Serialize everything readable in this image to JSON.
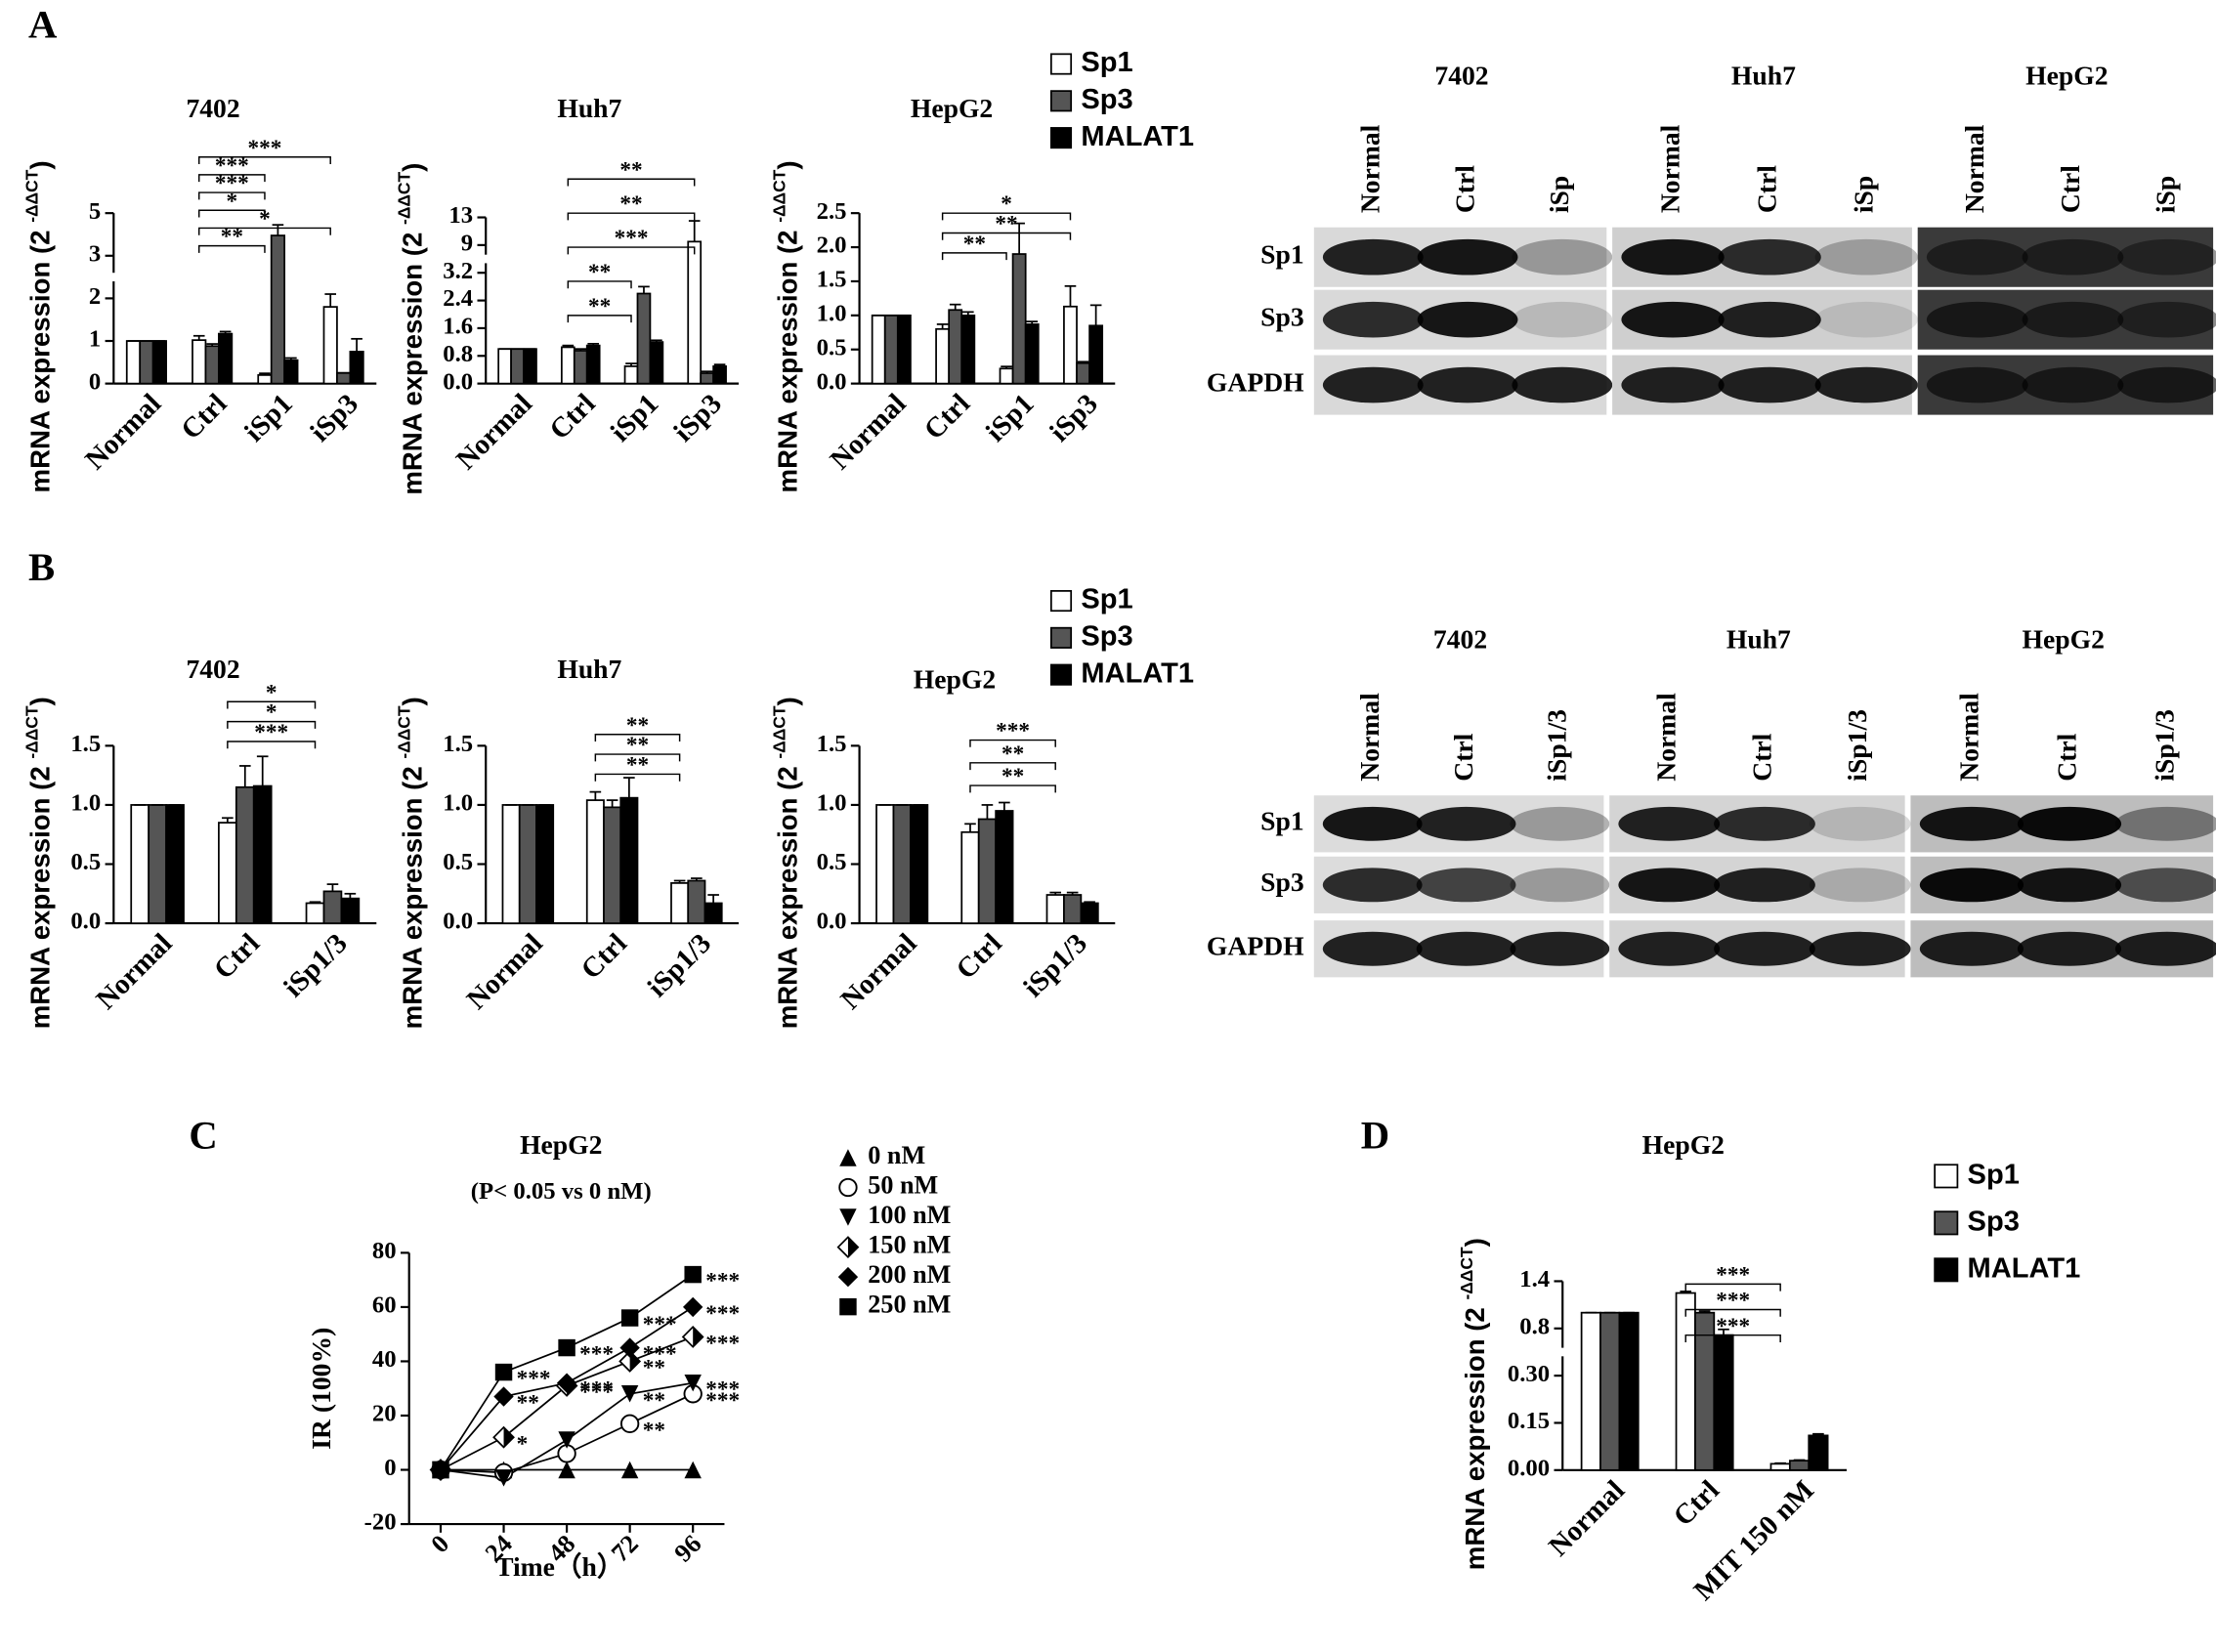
{
  "panel_labels": [
    "A",
    "B",
    "C",
    "D"
  ],
  "blots": [
    {
      "row_labels": [
        "Sp1",
        "Sp3",
        "GAPDH"
      ],
      "panels": [
        {
          "title": "7402",
          "lanes": [
            "Normal",
            "Ctrl",
            "iSp"
          ]
        },
        {
          "title": "Huh7",
          "lanes": [
            "Normal",
            "Ctrl",
            "iSp"
          ]
        },
        {
          "title": "HepG2",
          "lanes": [
            "Normal",
            "Ctrl",
            "iSp"
          ]
        }
      ]
    },
    {
      "row_labels": [
        "Sp1",
        "Sp3",
        "GAPDH"
      ],
      "panels": [
        {
          "title": "7402",
          "lanes": [
            "Normal",
            "Ctrl",
            "iSp1/3"
          ]
        },
        {
          "title": "Huh7",
          "lanes": [
            "Normal",
            "Ctrl",
            "iSp1/3"
          ]
        },
        {
          "title": "HepG2",
          "lanes": [
            "Normal",
            "Ctrl",
            "iSp1/3"
          ]
        }
      ]
    }
  ],
  "chart_data": [
    {
      "type": "bar",
      "title": "7402",
      "ylabel": [
        "mRNA expression (2 ",
        "-ΔΔCT",
        ")"
      ],
      "categories": [
        "Normal",
        "Ctrl",
        "iSp1",
        "iSp3"
      ],
      "series": [
        {
          "color": "#ffffff",
          "values": [
            1,
            1.02,
            0.2,
            1.8
          ],
          "errors": [
            0,
            0.1,
            0.04,
            0.3
          ]
        },
        {
          "color": "#555555",
          "values": [
            1,
            0.88,
            3.95,
            0.25
          ],
          "errors": [
            0,
            0.05,
            0.5,
            0
          ]
        },
        {
          "color": "#000000",
          "values": [
            1,
            1.17,
            0.55,
            0.75
          ],
          "errors": [
            0,
            0.05,
            0.05,
            0.3
          ]
        }
      ],
      "ylim": [
        0,
        5
      ],
      "yticks": [
        0,
        1,
        2,
        3,
        5
      ],
      "axis_break": true,
      "annotations": [
        {
          "text": "**",
          "from": "Ctrl",
          "to": "iSp1"
        },
        {
          "text": "*",
          "from": "Ctrl",
          "to": "iSp3"
        },
        {
          "text": "*",
          "from": "Ctrl",
          "to": "iSp1"
        },
        {
          "text": "***",
          "from": "Ctrl",
          "to": "iSp1"
        },
        {
          "text": "***",
          "from": "Ctrl",
          "to": "iSp1"
        },
        {
          "text": "***",
          "from": "Ctrl",
          "to": "iSp3"
        }
      ]
    },
    {
      "type": "bar",
      "title": "Huh7",
      "ylabel": [
        "mRNA expression (2 ",
        "-ΔΔCT",
        ")"
      ],
      "categories": [
        "Normal",
        "Ctrl",
        "iSp1",
        "iSp3"
      ],
      "series": [
        {
          "color": "#ffffff",
          "values": [
            1,
            1.05,
            0.5,
            9.5
          ],
          "errors": [
            0,
            0.05,
            0.08,
            3
          ]
        },
        {
          "color": "#555555",
          "values": [
            1,
            0.95,
            2.6,
            0.3
          ],
          "errors": [
            0,
            0.05,
            0.2,
            0.05
          ]
        },
        {
          "color": "#000000",
          "values": [
            1,
            1.1,
            1.2,
            0.5
          ],
          "errors": [
            0,
            0.05,
            0.05,
            0.05
          ]
        }
      ],
      "ylim": [
        0,
        13
      ],
      "yticks": [
        {
          "value": 0,
          "label": "0.0"
        },
        0.8,
        1.6,
        2.4,
        3.2,
        9,
        13
      ],
      "axis_break": true,
      "annotations": [
        {
          "text": "**",
          "from": "Ctrl",
          "to": "iSp1"
        },
        {
          "text": "**",
          "from": "Ctrl",
          "to": "iSp1"
        },
        {
          "text": "***",
          "from": "Ctrl",
          "to": "iSp3"
        },
        {
          "text": "**",
          "from": "Ctrl",
          "to": "iSp3"
        },
        {
          "text": "**",
          "from": "Ctrl",
          "to": "iSp3"
        }
      ]
    },
    {
      "type": "bar",
      "title": "HepG2",
      "ylabel": [
        "mRNA expression (2 ",
        "-ΔΔCT",
        ")"
      ],
      "categories": [
        "Normal",
        "Ctrl",
        "iSp1",
        "iSp3"
      ],
      "series": [
        {
          "name": "Sp1",
          "color": "#ffffff",
          "values": [
            1,
            0.8,
            0.22,
            1.13
          ],
          "errors": [
            0,
            0.07,
            0.03,
            0.3
          ]
        },
        {
          "name": "Sp3",
          "color": "#555555",
          "values": [
            1,
            1.08,
            1.9,
            0.3
          ],
          "errors": [
            0,
            0.08,
            0.45,
            0.02
          ]
        },
        {
          "name": "MALAT1",
          "color": "#000000",
          "values": [
            1,
            1.0,
            0.87,
            0.85
          ],
          "errors": [
            0,
            0.05,
            0.04,
            0.3
          ]
        }
      ],
      "ylim": [
        0,
        2.5
      ],
      "yticks": [
        {
          "value": 0,
          "label": "0.0"
        },
        0.5,
        {
          "value": 1,
          "label": "1.0"
        },
        1.5,
        {
          "value": 2,
          "label": "2.0"
        },
        2.5
      ],
      "legend": "right",
      "annotations": [
        {
          "text": "**",
          "from": "Ctrl",
          "to": "iSp1"
        },
        {
          "text": "**",
          "from": "Ctrl",
          "to": "iSp3"
        },
        {
          "text": "*",
          "from": "Ctrl",
          "to": "iSp3"
        }
      ]
    },
    {
      "type": "bar",
      "title": "7402",
      "ylabel": [
        "mRNA expression (2 ",
        "-ΔΔCT",
        ")"
      ],
      "categories": [
        "Normal",
        "Ctrl",
        "iSp1/3"
      ],
      "series": [
        {
          "color": "#ffffff",
          "values": [
            1,
            0.85,
            0.17
          ],
          "errors": [
            0,
            0.04,
            0.01
          ]
        },
        {
          "color": "#555555",
          "values": [
            1,
            1.15,
            0.27
          ],
          "errors": [
            0,
            0.18,
            0.06
          ]
        },
        {
          "color": "#000000",
          "values": [
            1,
            1.16,
            0.21
          ],
          "errors": [
            0,
            0.25,
            0.04
          ]
        }
      ],
      "ylim": [
        0,
        1.5
      ],
      "yticks": [
        {
          "value": 0,
          "label": "0.0"
        },
        0.5,
        {
          "value": 1,
          "label": "1.0"
        },
        1.5
      ],
      "annotations": [
        {
          "text": "***",
          "from": "Ctrl",
          "to": "iSp1/3"
        },
        {
          "text": "*",
          "from": "Ctrl",
          "to": "iSp1/3"
        },
        {
          "text": "*",
          "from": "Ctrl",
          "to": "iSp1/3"
        }
      ]
    },
    {
      "type": "bar",
      "title": "Huh7",
      "ylabel": [
        "mRNA expression (2 ",
        "-ΔΔCT",
        ")"
      ],
      "categories": [
        "Normal",
        "Ctrl",
        "iSp1/3"
      ],
      "series": [
        {
          "color": "#ffffff",
          "values": [
            1,
            1.04,
            0.34
          ],
          "errors": [
            0,
            0.07,
            0.02
          ]
        },
        {
          "color": "#555555",
          "values": [
            1,
            0.98,
            0.36
          ],
          "errors": [
            0,
            0.06,
            0.02
          ]
        },
        {
          "color": "#000000",
          "values": [
            1,
            1.06,
            0.17
          ],
          "errors": [
            0,
            0.17,
            0.07
          ]
        }
      ],
      "ylim": [
        0,
        1.5
      ],
      "yticks": [
        {
          "value": 0,
          "label": "0.0"
        },
        0.5,
        {
          "value": 1,
          "label": "1.0"
        },
        1.5
      ],
      "annotations": [
        {
          "text": "**",
          "from": "Ctrl",
          "to": "iSp1/3"
        },
        {
          "text": "**",
          "from": "Ctrl",
          "to": "iSp1/3"
        },
        {
          "text": "**",
          "from": "Ctrl",
          "to": "iSp1/3"
        }
      ]
    },
    {
      "type": "bar",
      "title": "HepG2",
      "ylabel": [
        "mRNA expression (2 ",
        "-ΔΔCT",
        ")"
      ],
      "categories": [
        "Normal",
        "Ctrl",
        "iSp1/3"
      ],
      "series": [
        {
          "name": "Sp1",
          "color": "#ffffff",
          "values": [
            1,
            0.77,
            0.24
          ],
          "errors": [
            0,
            0.07,
            0.02
          ]
        },
        {
          "name": "Sp3",
          "color": "#555555",
          "values": [
            1,
            0.88,
            0.24
          ],
          "errors": [
            0,
            0.12,
            0.02
          ]
        },
        {
          "name": "MALAT1",
          "color": "#000000",
          "values": [
            1,
            0.95,
            0.17
          ],
          "errors": [
            0,
            0.07,
            0.01
          ]
        }
      ],
      "ylim": [
        0,
        1.5
      ],
      "yticks": [
        {
          "value": 0,
          "label": "0.0"
        },
        0.5,
        {
          "value": 1,
          "label": "1.0"
        },
        1.5
      ],
      "legend": "right",
      "annotations": [
        {
          "text": "**",
          "from": "Ctrl",
          "to": "iSp1/3"
        },
        {
          "text": "**",
          "from": "Ctrl",
          "to": "iSp1/3"
        },
        {
          "text": "***",
          "from": "Ctrl",
          "to": "iSp1/3"
        }
      ]
    },
    {
      "type": "line",
      "title": "HepG2",
      "subtitle": "(P< 0.05 vs 0 nM)",
      "xlabel": "Time（h）",
      "ylabel": "IR (100%)",
      "x": [
        0,
        24,
        48,
        72,
        96
      ],
      "xlim": [
        -12,
        108
      ],
      "xticks": [
        0,
        24,
        48,
        72,
        96
      ],
      "ylim": [
        -20,
        80
      ],
      "yticks": [
        -20,
        0,
        20,
        40,
        60,
        80
      ],
      "legend": "right",
      "series": [
        {
          "name": "0 nM",
          "marker": "triangle",
          "color": "#000000",
          "values": [
            0,
            0,
            0,
            0,
            0
          ],
          "annotations": [
            null,
            null,
            null,
            null,
            null
          ]
        },
        {
          "name": "50 nM",
          "marker": "circle-open",
          "color": "#000000",
          "values": [
            0,
            -1,
            6,
            17,
            28
          ],
          "annotations": [
            null,
            null,
            null,
            "**",
            "***"
          ]
        },
        {
          "name": "100 nM",
          "marker": "triangle-down",
          "color": "#000000",
          "values": [
            0,
            -3,
            11,
            28,
            32
          ],
          "annotations": [
            null,
            null,
            null,
            "**",
            "***"
          ]
        },
        {
          "name": "150 nM",
          "marker": "diamond-half",
          "color": "#000000",
          "values": [
            0,
            12,
            31,
            40,
            49
          ],
          "annotations": [
            null,
            "*",
            "***",
            "**",
            "***"
          ]
        },
        {
          "name": "200 nM",
          "marker": "diamond",
          "color": "#000000",
          "values": [
            0,
            27,
            32,
            45,
            60
          ],
          "annotations": [
            null,
            "**",
            "***",
            "***",
            "***"
          ]
        },
        {
          "name": "250 nM",
          "marker": "square",
          "color": "#000000",
          "values": [
            0,
            36,
            45,
            56,
            72
          ],
          "annotations": [
            null,
            "***",
            "***",
            "***",
            "***"
          ]
        }
      ]
    },
    {
      "type": "bar",
      "title": "HepG2",
      "ylabel": [
        "mRNA expression (2 ",
        "-ΔΔCT",
        ")"
      ],
      "categories": [
        "Normal",
        "Ctrl",
        "MIT 150 nM"
      ],
      "series": [
        {
          "name": "Sp1",
          "color": "#ffffff",
          "values": [
            1,
            1.25,
            0.02
          ],
          "errors": [
            0,
            0.02,
            0.002
          ]
        },
        {
          "name": "Sp3",
          "color": "#555555",
          "values": [
            1,
            1.0,
            0.03
          ],
          "errors": [
            0,
            0.02,
            0.002
          ]
        },
        {
          "name": "MALAT1",
          "color": "#000000",
          "values": [
            1,
            0.73,
            0.11
          ],
          "errors": [
            0,
            0.06,
            0.005
          ]
        }
      ],
      "ylim": [
        0,
        1.4
      ],
      "yticks": [
        {
          "value": 0,
          "label": "0.00"
        },
        0.15,
        {
          "value": 0.3,
          "label": "0.30"
        },
        0.8,
        1.4
      ],
      "axis_break": true,
      "legend": "right",
      "annotations": [
        {
          "text": "***",
          "from": "Ctrl",
          "to": "MIT 150 nM"
        },
        {
          "text": "***",
          "from": "Ctrl",
          "to": "MIT 150 nM"
        },
        {
          "text": "***",
          "from": "Ctrl",
          "to": "MIT 150 nM"
        }
      ]
    }
  ]
}
